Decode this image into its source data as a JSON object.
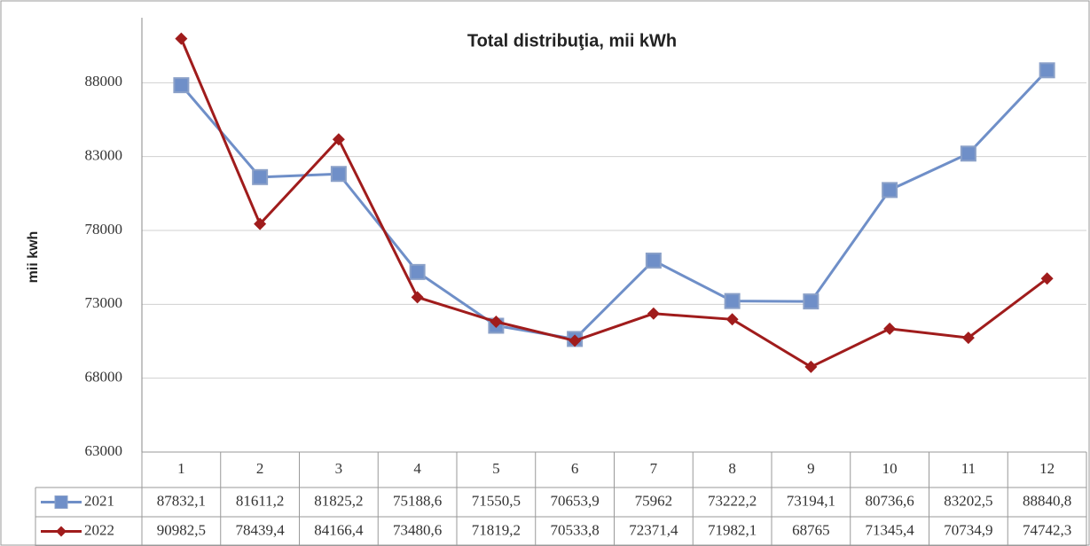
{
  "chart_data": {
    "type": "line",
    "title": "Total distribuţia, mii kWh",
    "y_label": "mii  kwh",
    "categories": [
      "1",
      "2",
      "3",
      "4",
      "5",
      "6",
      "7",
      "8",
      "9",
      "10",
      "11",
      "12"
    ],
    "series": [
      {
        "name": "2021",
        "color": "#6f8fc8",
        "marker": "square",
        "values": [
          87832.1,
          81611.2,
          81825.2,
          75188.6,
          71550.5,
          70653.9,
          75962,
          73222.2,
          73194.1,
          80736.6,
          83202.5,
          88840.8
        ],
        "value_labels": [
          "87832,1",
          "81611,2",
          "81825,2",
          "75188,6",
          "71550,5",
          "70653,9",
          "75962",
          "73222,2",
          "73194,1",
          "80736,6",
          "83202,5",
          "88840,8"
        ]
      },
      {
        "name": "2022",
        "color": "#a01c1c",
        "marker": "diamond",
        "values": [
          90982.5,
          78439.4,
          84166.4,
          73480.6,
          71819.2,
          70533.8,
          72371.4,
          71982.1,
          68765,
          71345.4,
          70734.9,
          74742.3
        ],
        "value_labels": [
          "90982,5",
          "78439,4",
          "84166,4",
          "73480,6",
          "71819,2",
          "70533,8",
          "72371,4",
          "71982,1",
          "68765",
          "71345,4",
          "70734,9",
          "74742,3"
        ]
      }
    ],
    "ylim": [
      63000,
      92400
    ],
    "yticks": [
      63000,
      68000,
      73000,
      78000,
      83000,
      88000
    ],
    "grid": true
  }
}
